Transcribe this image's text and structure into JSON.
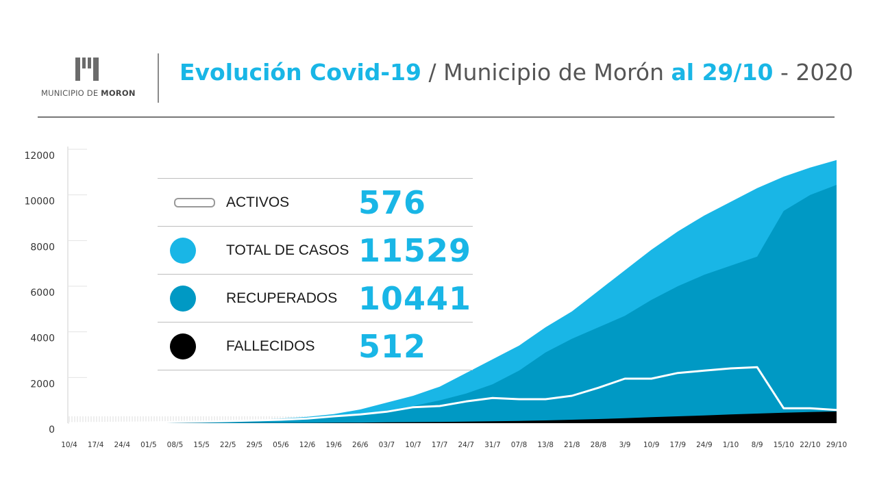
{
  "header": {
    "logo_text_regular": "MUNICIPIO DE ",
    "logo_text_bold": "MORON",
    "title_part1": "Evolución Covid-19",
    "title_part2": " / Municipio de Morón ",
    "title_part3": "al 29/10",
    "title_part4": " - 2020"
  },
  "legend": [
    {
      "label": "ACTIVOS",
      "value": "576",
      "symbol": "pill-icon"
    },
    {
      "label": "TOTAL DE CASOS",
      "value": "11529",
      "symbol": "dot-icon",
      "color": "#19b6e6"
    },
    {
      "label": "RECUPERADOS",
      "value": "10441",
      "symbol": "dot-icon",
      "color": "#0099c4"
    },
    {
      "label": "FALLECIDOS",
      "value": "512",
      "symbol": "dot-icon",
      "color": "#000000"
    }
  ],
  "chart_data": {
    "type": "area",
    "x": [
      "10/4",
      "17/4",
      "24/4",
      "01/5",
      "08/5",
      "15/5",
      "22/5",
      "29/5",
      "05/6",
      "12/6",
      "19/6",
      "26/6",
      "03/7",
      "10/7",
      "17/7",
      "24/7",
      "31/7",
      "07/8",
      "13/8",
      "21/8",
      "28/8",
      "3/9",
      "10/9",
      "17/9",
      "24/9",
      "1/10",
      "8/9",
      "15/10",
      "22/10",
      "29/10"
    ],
    "ylim": [
      0,
      12000
    ],
    "yticks": [
      0,
      2000,
      4000,
      6000,
      8000,
      10000,
      12000
    ],
    "series": [
      {
        "name": "TOTAL DE CASOS",
        "color": "#19b6e6",
        "values": [
          0,
          10,
          20,
          40,
          60,
          90,
          120,
          150,
          200,
          280,
          400,
          600,
          900,
          1200,
          1600,
          2200,
          2800,
          3400,
          4200,
          4900,
          5800,
          6700,
          7600,
          8400,
          9100,
          9700,
          10300,
          10800,
          11200,
          11529
        ]
      },
      {
        "name": "RECUPERADOS",
        "color": "#0099c4",
        "values": [
          0,
          5,
          10,
          20,
          40,
          60,
          90,
          110,
          150,
          200,
          280,
          400,
          550,
          750,
          1000,
          1300,
          1700,
          2300,
          3100,
          3700,
          4200,
          4700,
          5400,
          6000,
          6500,
          6900,
          7300,
          9300,
          10000,
          10441
        ]
      },
      {
        "name": "ACTIVOS",
        "color": "#ffffff",
        "values": [
          0,
          10,
          20,
          30,
          50,
          70,
          90,
          120,
          150,
          200,
          300,
          380,
          500,
          700,
          750,
          950,
          1100,
          1050,
          1050,
          1200,
          1550,
          1950,
          1950,
          2200,
          2300,
          2400,
          2450,
          650,
          650,
          576
        ]
      },
      {
        "name": "FALLECIDOS",
        "color": "#000000",
        "values": [
          0,
          0,
          0,
          1,
          2,
          3,
          4,
          5,
          8,
          12,
          18,
          25,
          35,
          45,
          55,
          70,
          85,
          100,
          120,
          150,
          180,
          220,
          260,
          300,
          340,
          380,
          420,
          460,
          490,
          512
        ]
      }
    ]
  }
}
